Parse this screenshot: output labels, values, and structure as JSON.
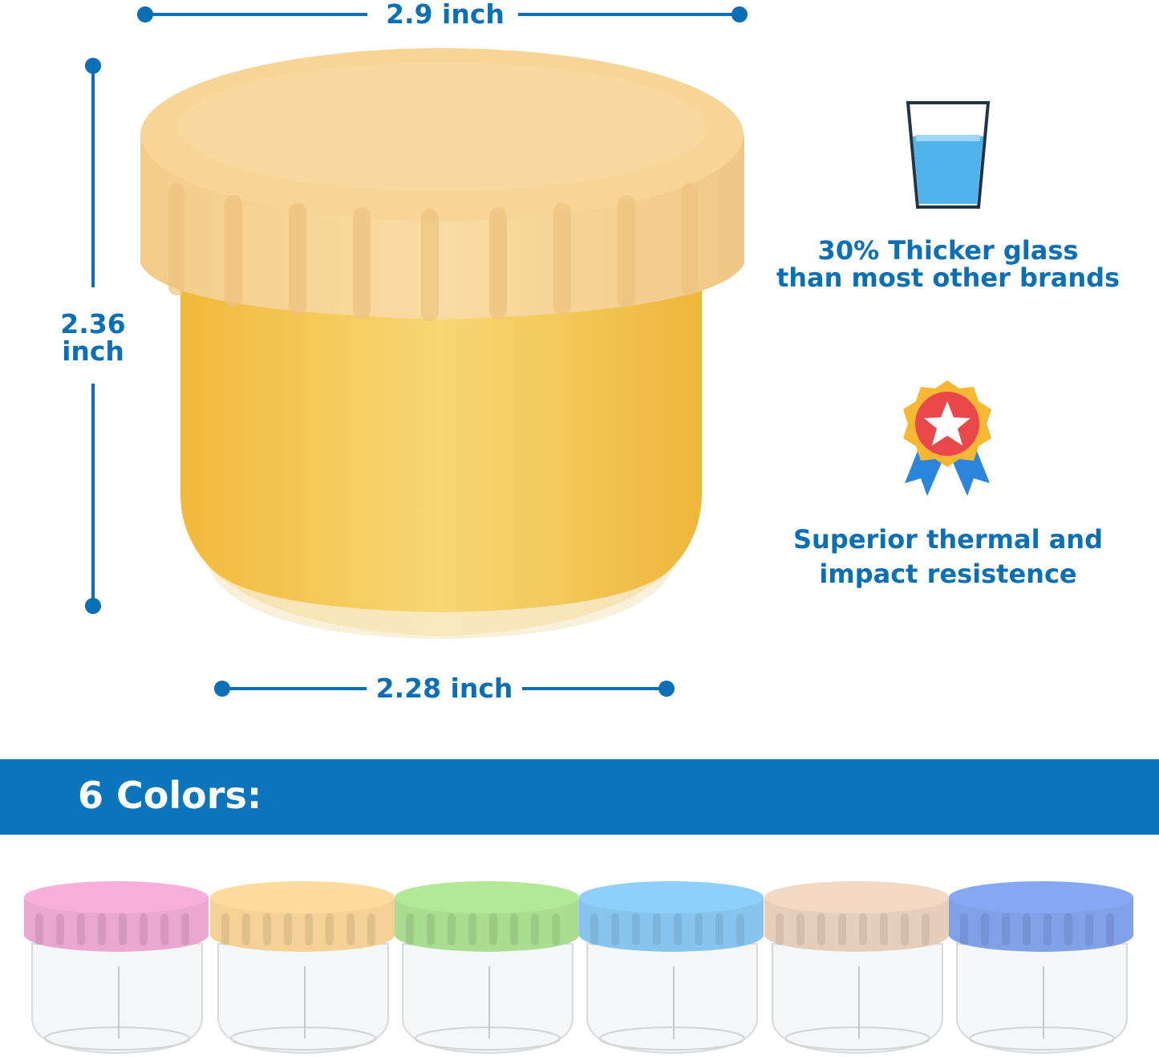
{
  "dimensions": {
    "width_label": "2.9 inch",
    "height_label_line1": "2.36",
    "height_label_line2": "inch",
    "base_label": "2.28 inch"
  },
  "features": [
    {
      "icon": "water-glass-icon",
      "line1": "30% Thicker glass",
      "line2": "than most other brands"
    },
    {
      "icon": "award-medal-icon",
      "line1": "Superior thermal and",
      "line2": "impact resistence"
    }
  ],
  "colors_banner": {
    "label": "6 Colors:"
  },
  "colors": {
    "accent": "#0b6fb6",
    "banner": "#0a74bd",
    "lids": [
      "#eaa7d0",
      "#f4d197",
      "#aadd90",
      "#88c5ee",
      "#e7cebb",
      "#80a0e8"
    ],
    "main_lid": "#f6d596",
    "main_food": "#f2c451"
  }
}
